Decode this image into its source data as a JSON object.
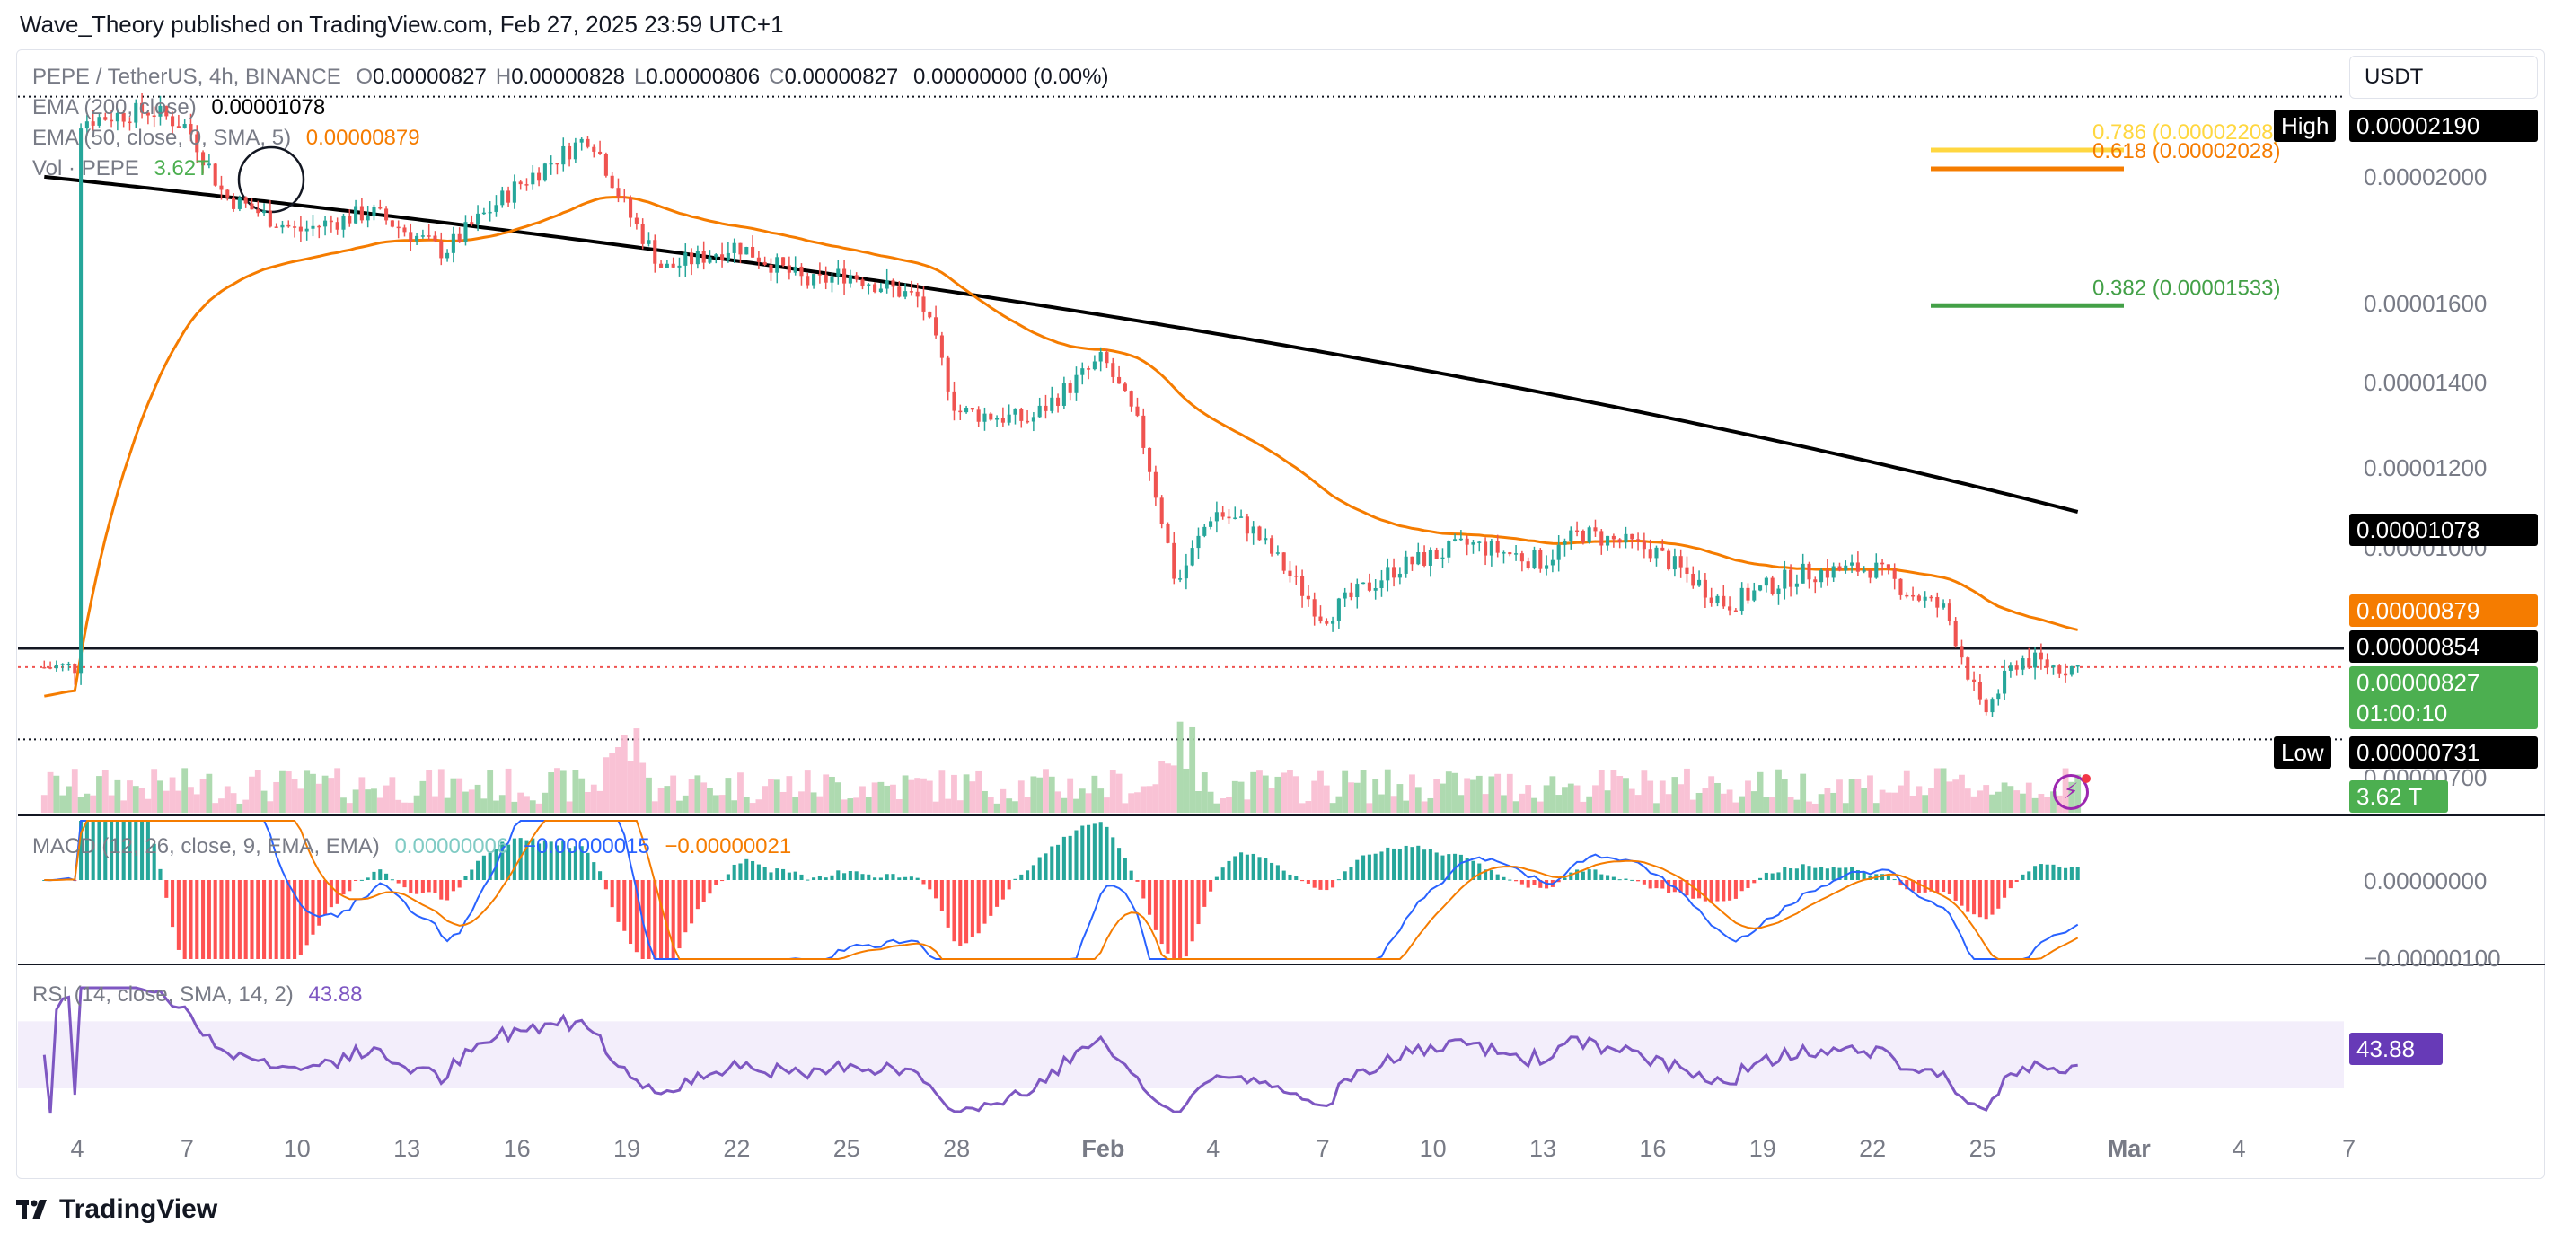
{
  "header": {
    "published": "Wave_Theory published on TradingView.com, Feb 27, 2025 23:59 UTC+1"
  },
  "legend": {
    "symbol": "PEPE / TetherUS, 4h, BINANCE",
    "ohlc": [
      {
        "k": "O",
        "v": "0.00000827"
      },
      {
        "k": "H",
        "v": "0.00000828"
      },
      {
        "k": "L",
        "v": "0.00000806"
      },
      {
        "k": "C",
        "v": "0.00000827"
      }
    ],
    "change": "0.00000000 (0.00%)",
    "ema200_label": "EMA (200, close)",
    "ema200_value": "0.00001078",
    "ema50_label": "EMA (50, close, 0, SMA, 5)",
    "ema50_value": "0.00000879",
    "vol_label": "Vol · PEPE",
    "vol_value": "3.62T",
    "macd_label": "MACD (12, 26, close, 9, EMA, EMA)",
    "macd_hist": "0.00000006",
    "macd_line": "−0.00000015",
    "macd_signal": "−0.00000021",
    "rsi_label": "RSI (14, close, SMA, 14, 2)",
    "rsi_value": "43.88"
  },
  "fib": {
    "l0786": "0.786 (0.00002208)",
    "l0618": "0.618 (0.00002028)",
    "l0382": "0.382 (0.00001533)"
  },
  "price_axis": {
    "currency": "USDT",
    "ticks": [
      "0.00002000",
      "0.00001600",
      "0.00001400",
      "0.00001200",
      "0.00001000",
      "0.00000700"
    ],
    "macd_ticks": [
      "0.00000000",
      "−0.00000100"
    ]
  },
  "tags": {
    "high_label": "High",
    "high_value": "0.00002190",
    "ema200": "0.00001078",
    "ema50": "0.00000879",
    "support": "0.00000854",
    "price": "0.00000827",
    "countdown": "01:00:10",
    "low_label": "Low",
    "low_value": "0.00000731",
    "volume": "3.62 T",
    "rsi": "43.88"
  },
  "date_axis": {
    "ticks": [
      "4",
      "7",
      "10",
      "13",
      "16",
      "19",
      "22",
      "25",
      "28",
      "Feb",
      "4",
      "7",
      "10",
      "13",
      "16",
      "19",
      "22",
      "25",
      "Mar",
      "4",
      "7"
    ]
  },
  "footer": {
    "brand": "TradingView"
  },
  "colors": {
    "up": "#26a69a",
    "down": "#ef5350",
    "ema200": "#000000",
    "ema50": "#f57c00",
    "macd_line": "#2962ff",
    "macd_signal": "#f57c00",
    "rsi": "#7e57c2",
    "fib_0786": "#ffd740",
    "fib_0618": "#f57c00",
    "fib_0382": "#43a047",
    "price_tag": "#4caf50",
    "rsi_tag": "#673ab7"
  },
  "chart_data": {
    "type": "candlestick",
    "title": "PEPE / TetherUS, 4h, BINANCE",
    "timeframe": "4h",
    "x_ticks": [
      "4",
      "7",
      "10",
      "13",
      "16",
      "19",
      "22",
      "25",
      "28",
      "Feb",
      "4",
      "7",
      "10",
      "13",
      "16",
      "19",
      "22",
      "25",
      "Mar",
      "4",
      "7"
    ],
    "y_range": [
      6.5e-06,
      2.25e-05
    ],
    "price_path": [
      {
        "date": "Jan 4",
        "close": 2.1e-05
      },
      {
        "date": "Jan 6",
        "close": 2.14e-05
      },
      {
        "date": "Jan 7",
        "close": 2.08e-05
      },
      {
        "date": "Jan 8",
        "close": 1.85e-05
      },
      {
        "date": "Jan 10",
        "close": 1.74e-05
      },
      {
        "date": "Jan 12",
        "close": 1.8e-05
      },
      {
        "date": "Jan 14",
        "close": 1.68e-05
      },
      {
        "date": "Jan 16",
        "close": 1.88e-05
      },
      {
        "date": "Jan 18",
        "close": 2.05e-05
      },
      {
        "date": "Jan 19",
        "close": 1.8e-05
      },
      {
        "date": "Jan 20",
        "close": 1.63e-05
      },
      {
        "date": "Jan 22",
        "close": 1.7e-05
      },
      {
        "date": "Jan 24",
        "close": 1.59e-05
      },
      {
        "date": "Jan 25",
        "close": 1.62e-05
      },
      {
        "date": "Jan 27",
        "close": 1.55e-05
      },
      {
        "date": "Jan 28",
        "close": 1.28e-05
      },
      {
        "date": "Jan 30",
        "close": 1.26e-05
      },
      {
        "date": "Feb 1",
        "close": 1.4e-05
      },
      {
        "date": "Feb 2",
        "close": 1.24e-05
      },
      {
        "date": "Feb 3",
        "close": 9.5e-06
      },
      {
        "date": "Feb 4",
        "close": 1.08e-05
      },
      {
        "date": "Feb 5",
        "close": 1.05e-05
      },
      {
        "date": "Feb 7",
        "close": 9e-06
      },
      {
        "date": "Feb 9",
        "close": 9.8e-06
      },
      {
        "date": "Feb 11",
        "close": 1.02e-05
      },
      {
        "date": "Feb 13",
        "close": 9.9e-06
      },
      {
        "date": "Feb 14",
        "close": 1.04e-05
      },
      {
        "date": "Feb 16",
        "close": 1.01e-05
      },
      {
        "date": "Feb 18",
        "close": 9.2e-06
      },
      {
        "date": "Feb 20",
        "close": 9.7e-06
      },
      {
        "date": "Feb 22",
        "close": 9.8e-06
      },
      {
        "date": "Feb 23",
        "close": 9.4e-06
      },
      {
        "date": "Feb 24",
        "close": 9.1e-06
      },
      {
        "date": "Feb 25",
        "close": 7.6e-06
      },
      {
        "date": "Feb 26",
        "close": 8.4e-06
      },
      {
        "date": "Feb 27",
        "close": 8.27e-06
      }
    ],
    "ema200": {
      "start": 1.91e-05,
      "end": 1.078e-05
    },
    "ema50": {
      "end": 8.79e-06
    },
    "levels": {
      "high": 2.19e-05,
      "support": 8.54e-06,
      "low": 7.31e-06,
      "fib_0786": 2.208e-05,
      "fib_0618": 2.028e-05,
      "fib_0382": 1.533e-05
    },
    "volume_last": "3.62T",
    "macd": {
      "macd": -1.5e-07,
      "signal": -2.1e-07,
      "histogram": 6e-08
    },
    "rsi": {
      "last": 43.88,
      "range": [
        0,
        100
      ],
      "band": [
        30,
        70
      ]
    }
  }
}
